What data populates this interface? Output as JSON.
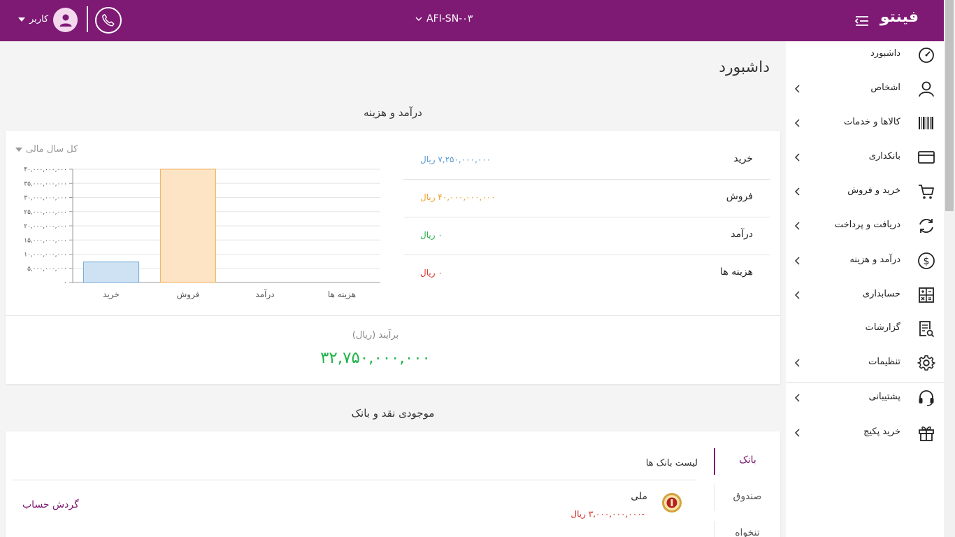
{
  "header": {
    "logo": "فینتو",
    "company": "AFI-SN-۰۳",
    "user": "کاربر",
    "menu_icon": "menu-collapse-icon",
    "phone_icon": "phone-icon",
    "avatar_icon": "user-avatar-icon"
  },
  "sidebar": {
    "items": [
      {
        "label": "داشبورد",
        "icon": "speedometer-icon",
        "chevron": false
      },
      {
        "label": "اشخاص",
        "icon": "person-icon",
        "chevron": true
      },
      {
        "label": "کالاها و خدمات",
        "icon": "barcode-icon",
        "chevron": true
      },
      {
        "label": "بانکداری",
        "icon": "card-icon",
        "chevron": true
      },
      {
        "label": "خرید و فروش",
        "icon": "cart-icon",
        "chevron": true
      },
      {
        "label": "دریافت و پرداخت",
        "icon": "refresh-icon",
        "chevron": true
      },
      {
        "label": "درآمد و هزینه",
        "icon": "dollar-icon",
        "chevron": true
      },
      {
        "label": "حسابداری",
        "icon": "calculator-icon",
        "chevron": true
      },
      {
        "label": "گزارشات",
        "icon": "report-icon",
        "chevron": false
      },
      {
        "label": "تنظیمات",
        "icon": "gear-icon",
        "chevron": true
      },
      {
        "label": "پشتیبانی",
        "icon": "headset-icon",
        "chevron": true
      },
      {
        "label": "خرید پکیج",
        "icon": "gift-icon",
        "chevron": true
      }
    ]
  },
  "page_title": "داشبورد",
  "income_section": {
    "title": "درآمد و هزینه",
    "period": "کل سال مالی",
    "stats": [
      {
        "label": "خرید",
        "value": "۷,۲۵۰,۰۰۰,۰۰۰ ریال",
        "color": "#5b9bd5"
      },
      {
        "label": "فروش",
        "value": "۴۰,۰۰۰,۰۰۰,۰۰۰ ریال",
        "color": "#f0a030"
      },
      {
        "label": "درآمد",
        "value": "۰ ریال",
        "color": "#20b34a"
      },
      {
        "label": "هزینه ها",
        "value": "۰ ریال",
        "color": "#d9342b"
      }
    ],
    "net_label": "برآیند (ریال)",
    "net_value": "۳۲,۷۵۰,۰۰۰,۰۰۰"
  },
  "chart_data": {
    "type": "bar",
    "categories": [
      "خرید",
      "فروش",
      "درآمد",
      "هزینه ها"
    ],
    "values": [
      7250000000,
      40000000000,
      0,
      0
    ],
    "colors": [
      "#cfe2f3",
      "#fde4c4",
      "#d8f0dc",
      "#f8d7d5"
    ],
    "border_colors": [
      "#6fa8d8",
      "#f0b060",
      "#7fcf95",
      "#e58a84"
    ],
    "yticks": [
      0,
      5000000000,
      10000000000,
      15000000000,
      20000000000,
      25000000000,
      30000000000,
      35000000000,
      40000000000
    ],
    "ytick_labels": [
      "۰",
      "۵,۰۰۰,۰۰۰,۰۰۰",
      "۱۰,۰۰۰,۰۰۰,۰۰۰",
      "۱۵,۰۰۰,۰۰۰,۰۰۰",
      "۲۰,۰۰۰,۰۰۰,۰۰۰",
      "۲۵,۰۰۰,۰۰۰,۰۰۰",
      "۳۰,۰۰۰,۰۰۰,۰۰۰",
      "۳۵,۰۰۰,۰۰۰,۰۰۰",
      "۴۰,۰۰۰,۰۰۰,۰۰۰"
    ],
    "ylim": [
      0,
      40000000000
    ],
    "grid": true,
    "title": "",
    "xlabel": "",
    "ylabel": ""
  },
  "cash_section": {
    "title": "موجودی نقد و بانک",
    "tabs": [
      "بانک",
      "صندوق",
      "تنخواه"
    ],
    "list_title": "لیست بانک ها",
    "bank": {
      "name": "ملی",
      "balance": "-۳,۰۰۰,۰۰۰,۰۰۰ ریال",
      "link": "گردش حساب",
      "logo_icon": "bank-melli-logo-icon"
    }
  }
}
